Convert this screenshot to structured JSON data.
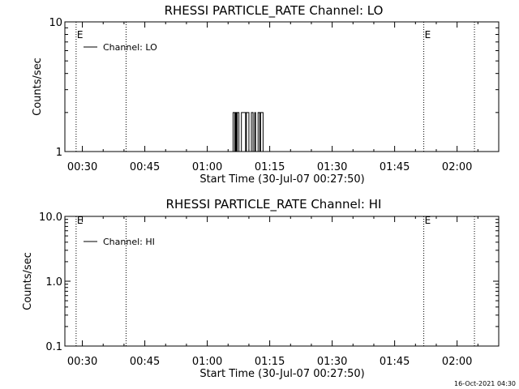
{
  "chart_data": [
    {
      "type": "line",
      "title": "RHESSI PARTICLE_RATE Channel: LO",
      "xlabel": "Start Time (30-Jul-07 00:27:50)",
      "ylabel": "Counts/sec",
      "yscale": "log",
      "ylim": [
        1,
        10
      ],
      "xlim_minutes": [
        25.8,
        130
      ],
      "x_ticks": [
        "00:30",
        "00:45",
        "01:00",
        "01:15",
        "01:30",
        "01:45",
        "02:00"
      ],
      "y_ticks": [
        "1",
        "10"
      ],
      "grid": false,
      "legend": "top-left",
      "series": [
        {
          "name": "Channel: LO",
          "x": [
            "01:06:06",
            "01:06:18",
            "01:06:30",
            "01:06:42",
            "01:06:54",
            "01:07:06",
            "01:07:18",
            "01:07:30",
            "01:07:42",
            "01:07:54",
            "01:08:06",
            "01:08:18",
            "01:08:30",
            "01:08:42",
            "01:08:54",
            "01:09:06",
            "01:09:18",
            "01:09:30",
            "01:09:42",
            "01:09:54",
            "01:10:06",
            "01:10:18",
            "01:10:30",
            "01:10:42",
            "01:10:54",
            "01:11:06",
            "01:11:18",
            "01:11:30",
            "01:11:42",
            "01:11:54",
            "01:12:06",
            "01:12:18",
            "01:12:30",
            "01:12:42",
            "01:12:54",
            "01:13:06",
            "01:13:18",
            "01:13:30"
          ],
          "values": [
            1,
            2,
            2,
            1,
            2,
            1,
            2,
            2,
            1,
            1,
            1,
            2,
            2,
            2,
            2,
            2,
            1,
            2,
            2,
            2,
            1,
            1,
            1,
            2,
            2,
            1,
            1,
            2,
            1,
            1,
            1,
            2,
            2,
            1,
            2,
            2,
            2,
            1
          ]
        }
      ],
      "markers": [
        {
          "label": "E",
          "time": "00:28:30"
        },
        {
          "label": "",
          "time": "00:40:30"
        },
        {
          "label": "E",
          "time": "01:52:00"
        },
        {
          "label": "",
          "time": "02:04:10"
        }
      ]
    },
    {
      "type": "line",
      "title": "RHESSI PARTICLE_RATE Channel: HI",
      "xlabel": "Start Time (30-Jul-07 00:27:50)",
      "ylabel": "Counts/sec",
      "yscale": "log",
      "ylim": [
        0.1,
        10
      ],
      "xlim_minutes": [
        25.8,
        130
      ],
      "x_ticks": [
        "00:30",
        "00:45",
        "01:00",
        "01:15",
        "01:30",
        "01:45",
        "02:00"
      ],
      "y_ticks": [
        "0.1",
        "1.0",
        "10.0"
      ],
      "grid": false,
      "legend": "top-left",
      "series": [
        {
          "name": "Channel: HI",
          "x": [],
          "values": []
        }
      ],
      "markers": [
        {
          "label": "E",
          "time": "00:28:30"
        },
        {
          "label": "",
          "time": "00:40:30"
        },
        {
          "label": "E",
          "time": "01:52:00"
        },
        {
          "label": "",
          "time": "02:04:10"
        }
      ]
    }
  ],
  "footer": {
    "timestamp": "16-Oct-2021 04:30"
  }
}
